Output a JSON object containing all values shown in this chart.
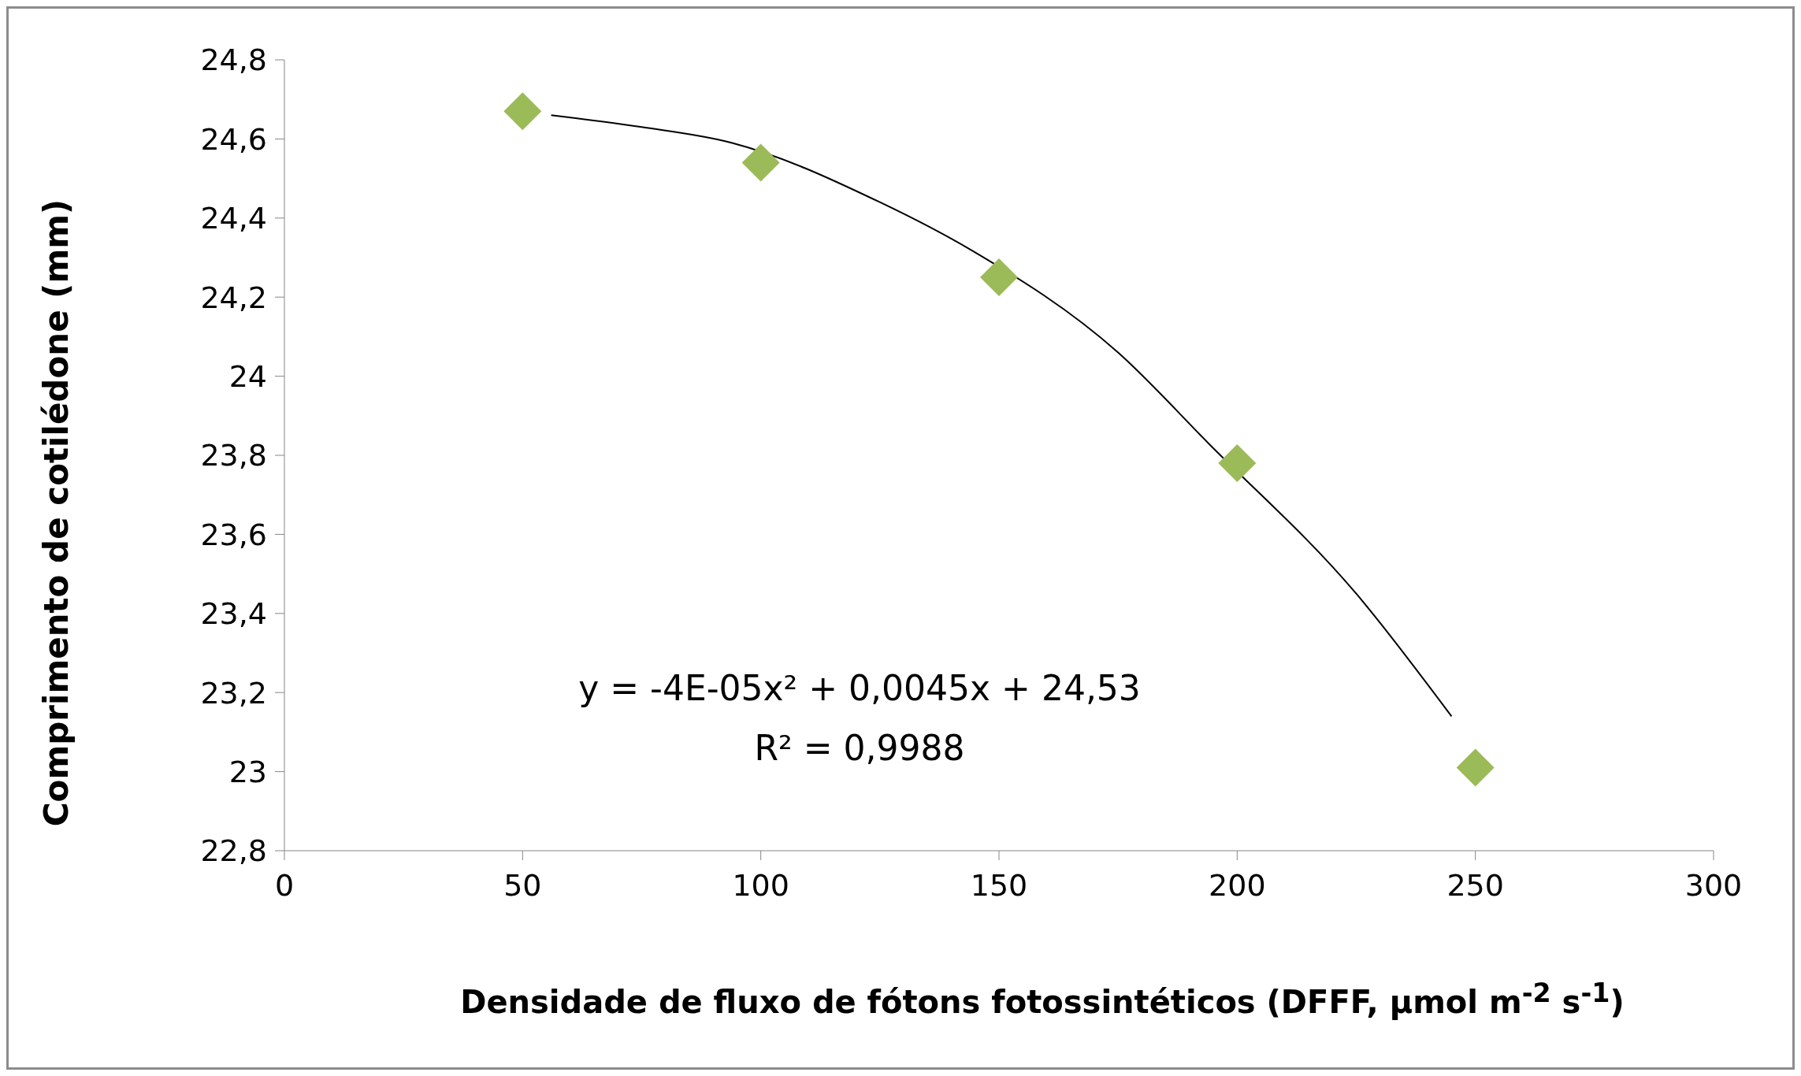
{
  "chart_data": {
    "type": "scatter",
    "xlabel": "Densidade de fluxo de fótons fotossintéticos (DFFF, µmol m$^{-2}$ s$^{-1}$)",
    "ylabel": "Comprimento de cotilédone (mm)",
    "x": [
      50,
      100,
      150,
      200,
      250
    ],
    "series": [
      {
        "type": "scatter",
        "color": "#9bbb59",
        "marker": "diamond",
        "values": [
          24.67,
          24.54,
          24.25,
          23.78,
          23.01
        ]
      },
      {
        "type": "line",
        "color": "#000000",
        "marker": "none",
        "x": [
          56,
          75,
          94,
          125,
          144,
          175,
          194,
          225,
          245
        ],
        "values": [
          24.66,
          24.63,
          24.59,
          24.44,
          24.32,
          24.06,
          23.83,
          23.45,
          23.14
        ]
      }
    ],
    "annotations": [
      "y = -4E-05x² + 0,0045x + 24,53",
      "R² = 0,9988"
    ],
    "xlim": [
      0,
      300
    ],
    "xticks": [
      0,
      50,
      100,
      150,
      200,
      250,
      300
    ],
    "ylim": [
      22.8,
      24.8
    ],
    "yticks": [
      {
        "value": 22.8,
        "label": "22,8"
      },
      {
        "value": 23,
        "label": "23"
      },
      {
        "value": 23.2,
        "label": "23,2"
      },
      {
        "value": 23.4,
        "label": "23,4"
      },
      {
        "value": 23.6,
        "label": "23,6"
      },
      {
        "value": 23.8,
        "label": "23,8"
      },
      {
        "value": 24,
        "label": "24"
      },
      {
        "value": 24.2,
        "label": "24,2"
      },
      {
        "value": 24.4,
        "label": "24,4"
      },
      {
        "value": 24.6,
        "label": "24,6"
      },
      {
        "value": 24.8,
        "label": "24,8"
      }
    ],
    "grid": false,
    "legend": false
  }
}
